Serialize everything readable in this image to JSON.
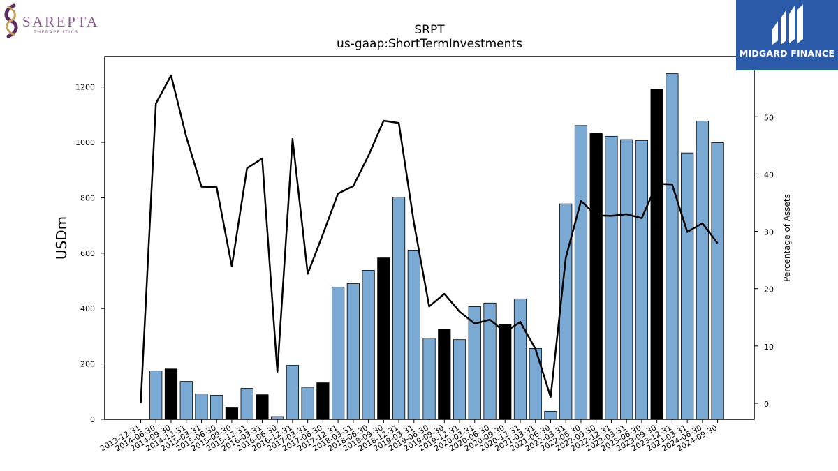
{
  "brand_left": {
    "name": "SAREPTA",
    "sub": "THERAPEUTICS",
    "colors": {
      "text": "#8a5c8f",
      "swirl_a": "#c9a25a",
      "swirl_b": "#5b2a5e"
    }
  },
  "brand_right": {
    "name": "MIDGARD FINANCE",
    "bg": "#2b5aa8"
  },
  "chart_data": {
    "type": "bar",
    "title": "SRPT",
    "subtitle": "us-gaap:ShortTermInvestments",
    "ylabel": "USDm",
    "ylabel_right": "Percentage of Assets",
    "ylim": [
      0,
      1310
    ],
    "ylim_right": [
      -2.8,
      60.5
    ],
    "yticks": [
      0,
      200,
      400,
      600,
      800,
      1000,
      1200
    ],
    "yticks_right": [
      0,
      10,
      20,
      30,
      40,
      50
    ],
    "categories": [
      "2013-12-31",
      "2014-06-30",
      "2014-09-30",
      "2014-12-31",
      "2015-03-31",
      "2015-06-30",
      "2015-09-30",
      "2015-12-31",
      "2016-03-31",
      "2016-06-30",
      "2016-12-31",
      "2017-03-31",
      "2017-06-30",
      "2017-12-31",
      "2018-03-31",
      "2018-06-30",
      "2018-09-30",
      "2018-12-31",
      "2019-03-31",
      "2019-06-30",
      "2019-09-30",
      "2019-12-31",
      "2020-03-31",
      "2020-06-30",
      "2020-09-30",
      "2020-12-31",
      "2021-03-31",
      "2021-06-30",
      "2022-03-31",
      "2022-06-30",
      "2022-09-30",
      "2022-12-31",
      "2023-03-31",
      "2023-06-30",
      "2023-09-30",
      "2023-12-31",
      "2024-03-31",
      "2024-06-30",
      "2024-09-30"
    ],
    "series": [
      {
        "kind": "bar",
        "values": [
          0,
          175,
          182,
          137,
          92,
          87,
          44,
          112,
          89,
          10,
          195,
          116,
          132,
          477,
          490,
          538,
          583,
          802,
          611,
          293,
          324,
          288,
          407,
          420,
          342,
          435,
          256,
          29,
          778,
          1061,
          1032,
          1022,
          1010,
          1007,
          1192,
          1248,
          962,
          1077,
          999
        ]
      },
      {
        "kind": "line",
        "values": [
          0,
          52.3,
          57.2,
          46.5,
          37.8,
          37.7,
          23.9,
          41.0,
          42.7,
          5.5,
          46.1,
          22.6,
          29.5,
          36.6,
          37.9,
          43.2,
          49.3,
          48.9,
          31.4,
          16.9,
          19.1,
          16.0,
          13.9,
          14.6,
          12.4,
          14.2,
          9.5,
          1.1,
          25.4,
          35.3,
          32.8,
          32.7,
          33.0,
          32.3,
          38.3,
          38.2,
          29.9,
          31.4,
          27.9
        ]
      }
    ],
    "highlight_categories": [
      "2014-09-30",
      "2015-09-30",
      "2016-03-31",
      "2017-06-30",
      "2018-09-30",
      "2019-09-30",
      "2020-09-30",
      "2022-09-30",
      "2023-09-30"
    ],
    "colors": {
      "bar": "#7aaad3",
      "bar_highlight": "#000000",
      "line": "#000000"
    },
    "grid": false
  }
}
